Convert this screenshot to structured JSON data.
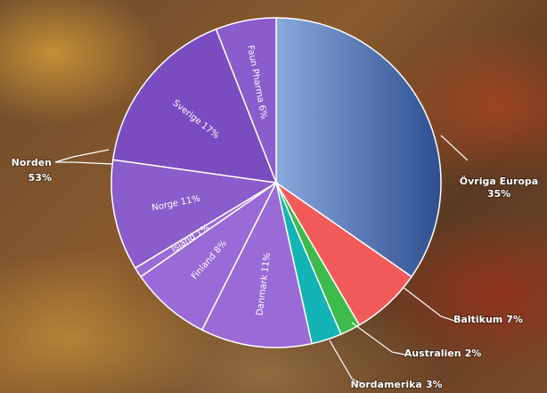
{
  "chart_data": {
    "type": "pie",
    "categories": [
      "Övriga Europa",
      "Baltikum",
      "Australien",
      "Nordamerika",
      "Danmark",
      "Finland",
      "Island",
      "Norge",
      "Sverige",
      "Faun Pharma"
    ],
    "values": [
      35,
      7,
      2,
      3,
      11,
      8,
      1,
      11,
      17,
      6
    ],
    "value_labels": [
      "35%",
      "7%",
      "2%",
      "3%",
      "11%",
      "8%",
      "1%",
      "11%",
      "17%",
      "6%"
    ],
    "colors": [
      "#4a6fb5",
      "#f25a5a",
      "#3dbb4c",
      "#12b3b5",
      "#9a6ad6",
      "#9a6ad6",
      "#9a6ad6",
      "#8a5ccc",
      "#7a4cc0",
      "#8a5ccc"
    ],
    "annotation": [
      "Norden",
      "53%"
    ]
  }
}
